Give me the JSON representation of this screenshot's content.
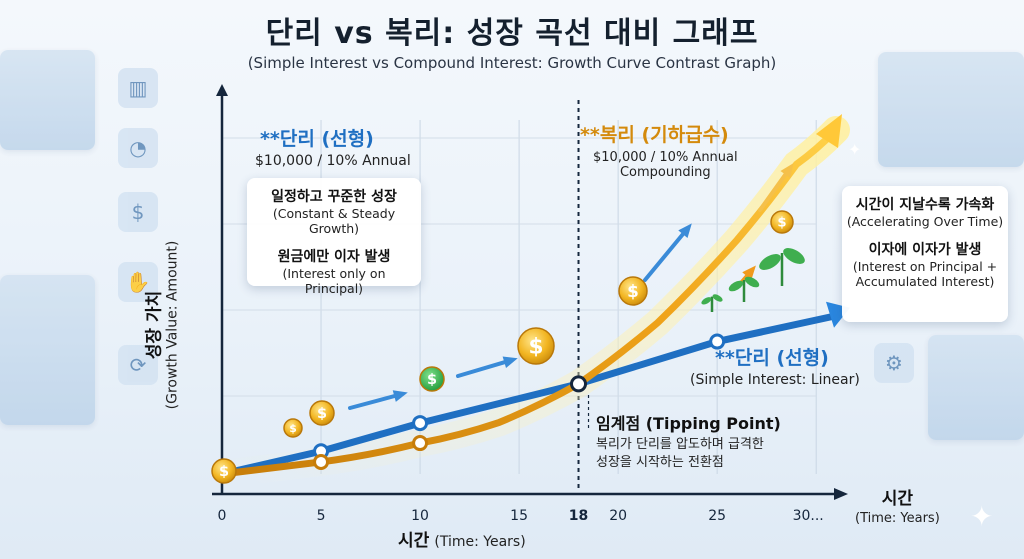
{
  "title": "단리 vs 복리: 성장 곡선 대비 그래프",
  "subtitle": "(Simple Interest vs Compound Interest: Growth Curve Contrast Graph)",
  "left_callout": {
    "header": "**단리 (선형)",
    "sub": "$10,000 / 10% Annual",
    "line1_ko": "일정하고 꾸준한 성장",
    "line1_en": "(Constant & Steady Growth)",
    "line2_ko": "원금에만 이자 발생",
    "line2_en": "(Interest only on Principal)"
  },
  "compound_label": {
    "header": "**복리 (기하급수)",
    "sub1": "$10,000 / 10% Annual",
    "sub2": "Compounding"
  },
  "right_callout": {
    "line1_ko": "시간이 지날수록 가속화",
    "line1_en": "(Accelerating Over Time)",
    "line2_ko": "이자에 이자가 발생",
    "line2_en_1": "(Interest on Principal +",
    "line2_en_2": "Accumulated Interest)"
  },
  "simple_label": {
    "header": "**단리 (선형)",
    "sub": "(Simple Interest: Linear)"
  },
  "tipping": {
    "title": "임계점 (Tipping Point)",
    "desc1": "복리가 단리를 압도하며 급격한",
    "desc2": "성장을 시작하는 전환점"
  },
  "coin_symbol": "$",
  "chart_data": {
    "type": "line",
    "xlabel_ko": "시간",
    "xlabel_en": "(Time: Years)",
    "x_axis_title_end": "시간",
    "x_axis_title_end_en": "(Time: Years)",
    "ylabel_ko": "성장 가치",
    "ylabel_en": "(Growth Value: Amount)",
    "x_ticks": [
      "0",
      "5",
      "10",
      "15",
      "18",
      "20",
      "25",
      "30..."
    ],
    "x_tick_values": [
      0,
      5,
      10,
      15,
      18,
      20,
      25,
      30
    ],
    "xlim": [
      0,
      31
    ],
    "ylim": [
      0,
      1
    ],
    "tipping_point_x": 18,
    "series": [
      {
        "name": "**단리 (선형)",
        "color": "#1f6fc2",
        "x": [
          0,
          5,
          10,
          18,
          25,
          31
        ],
        "y": [
          0.0,
          0.066,
          0.148,
          0.262,
          0.385,
          0.46
        ],
        "markers": [
          5,
          10,
          18,
          25
        ]
      },
      {
        "name": "**복리 (기하급수)",
        "color": "#e0940f",
        "x": [
          0,
          5,
          10,
          14,
          18,
          22,
          26,
          29,
          31
        ],
        "y": [
          0.0,
          0.035,
          0.09,
          0.15,
          0.262,
          0.44,
          0.68,
          0.9,
          1.0
        ],
        "markers": [
          5,
          10
        ]
      }
    ]
  }
}
